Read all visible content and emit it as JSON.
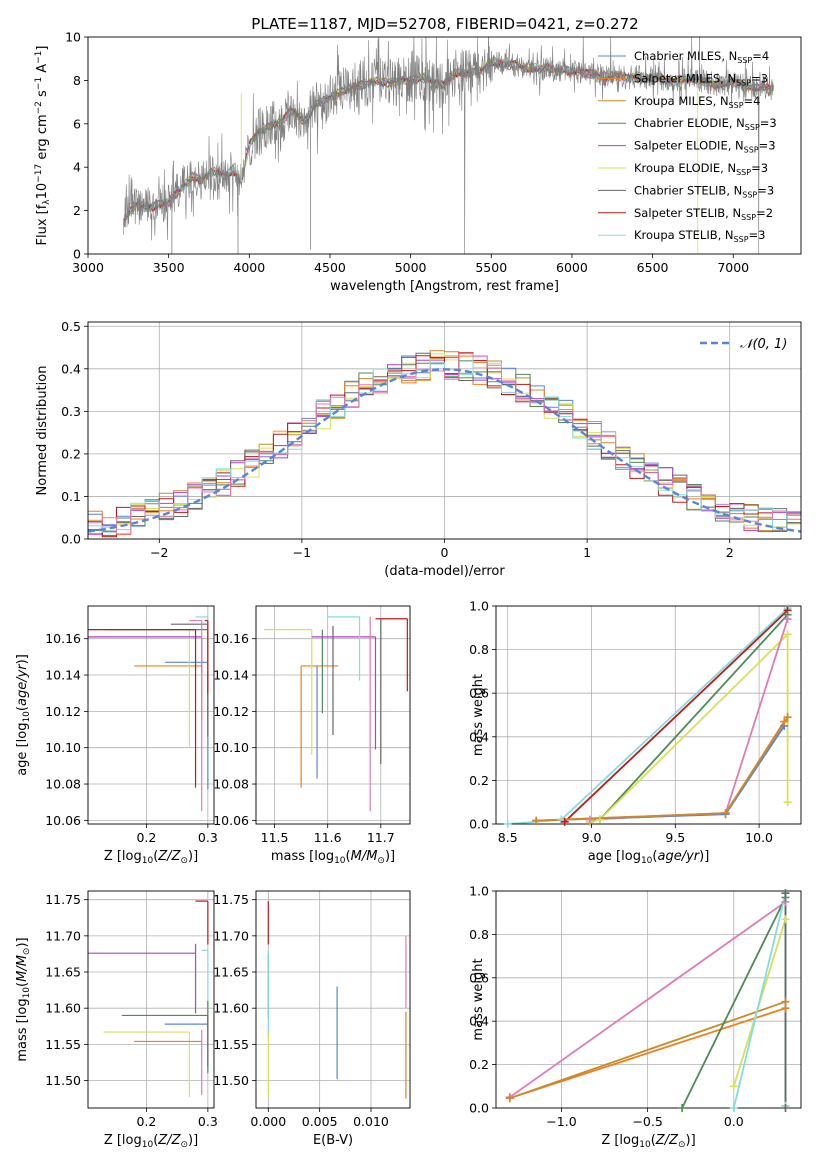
{
  "figure": {
    "title": "PLATE=1187, MJD=52708, FIBERID=0421, z=0.272"
  },
  "colors": {
    "Chabrier MILES": "#5a85d6",
    "Salpeter MILES": "#f07f1e",
    "Kroupa MILES": "#c88a2a",
    "Chabrier ELODIE": "#4e8a55",
    "Salpeter ELODIE": "#b23fcc",
    "Kroupa ELODIE": "#d7e05a",
    "Chabrier STELIB": "#666666",
    "Salpeter STELIB": "#c01818",
    "Kroupa STELIB": "#82dde0",
    "pink": "#e07ab8"
  },
  "chart_data": [
    {
      "id": "spectrum",
      "type": "line",
      "title": "PLATE=1187, MJD=52708, FIBERID=0421, z=0.272",
      "xlabel": "wavelength [Angstrom, rest frame]",
      "ylabel": "Flux [f_λ 10^-17 erg cm^-2 s^-1 A^-1]",
      "xlim": [
        3000,
        7420
      ],
      "ylim": [
        0,
        10
      ],
      "xticks": [
        "3000",
        "3500",
        "4000",
        "4500",
        "5000",
        "5500",
        "6000",
        "6500",
        "7000"
      ],
      "yticks": [
        "0",
        "2",
        "4",
        "6",
        "8",
        "10"
      ],
      "grid": false,
      "legend_position": "upper right",
      "legend": [
        {
          "label": "Chabrier MILES, N",
          "sub": "SSP",
          "tail": "=4",
          "color": "#5a85d6"
        },
        {
          "label": "Salpeter MILES, N",
          "sub": "SSP",
          "tail": "=3",
          "color": "#f07f1e"
        },
        {
          "label": "Kroupa MILES, N",
          "sub": "SSP",
          "tail": "=4",
          "color": "#c88a2a"
        },
        {
          "label": "Chabrier ELODIE, N",
          "sub": "SSP",
          "tail": "=3",
          "color": "#4e8a55"
        },
        {
          "label": "Salpeter ELODIE, N",
          "sub": "SSP",
          "tail": "=3",
          "color": "#b23fcc"
        },
        {
          "label": "Kroupa ELODIE, N",
          "sub": "SSP",
          "tail": "=3",
          "color": "#d7e05a"
        },
        {
          "label": "Chabrier STELIB, N",
          "sub": "SSP",
          "tail": "=3",
          "color": "#666666"
        },
        {
          "label": "Salpeter STELIB, N",
          "sub": "SSP",
          "tail": "=2",
          "color": "#c01818"
        },
        {
          "label": "Kroupa STELIB, N",
          "sub": "SSP",
          "tail": "=3",
          "color": "#82dde0"
        }
      ],
      "continuum": {
        "wavelength": [
          3220,
          3250,
          3300,
          3350,
          3400,
          3450,
          3500,
          3550,
          3600,
          3650,
          3700,
          3750,
          3800,
          3850,
          3900,
          3950,
          4000,
          4050,
          4100,
          4150,
          4200,
          4250,
          4300,
          4350,
          4400,
          4450,
          4500,
          4550,
          4600,
          4650,
          4700,
          4750,
          4800,
          4850,
          4900,
          4950,
          5000,
          5050,
          5100,
          5150,
          5200,
          5250,
          5300,
          5350,
          5400,
          5450,
          5500,
          5550,
          5600,
          5650,
          5700,
          5750,
          5800,
          5850,
          5900,
          5950,
          6000,
          6050,
          6100,
          6150,
          6200,
          6250,
          6300,
          6350,
          6400,
          6450,
          6500,
          6550,
          6600,
          6650,
          6700,
          6750,
          6800,
          6850,
          6900,
          6950,
          7000,
          7050,
          7100,
          7150,
          7200,
          7250
        ],
        "flux": [
          1.5,
          1.9,
          2.2,
          2.2,
          2.2,
          2.3,
          2.4,
          2.8,
          3.2,
          3.6,
          3.4,
          3.7,
          3.8,
          3.6,
          3.9,
          3.3,
          5.0,
          5.6,
          5.8,
          6.0,
          6.0,
          6.6,
          6.4,
          6.1,
          6.8,
          7.0,
          7.2,
          7.4,
          7.6,
          7.7,
          7.8,
          7.9,
          8.0,
          7.9,
          7.9,
          8.0,
          8.0,
          8.1,
          8.1,
          7.8,
          7.8,
          8.2,
          8.4,
          8.3,
          8.4,
          8.5,
          8.9,
          8.8,
          8.7,
          8.7,
          8.6,
          8.6,
          8.5,
          8.6,
          8.4,
          8.5,
          8.4,
          8.4,
          8.3,
          8.3,
          8.2,
          8.2,
          8.2,
          8.1,
          8.2,
          8.1,
          8.1,
          8.1,
          8.0,
          8.0,
          8.1,
          8.0,
          8.0,
          7.9,
          7.8,
          7.8,
          7.9,
          7.8,
          7.7,
          7.7,
          7.7,
          7.5
        ]
      }
    },
    {
      "id": "residuals",
      "type": "histogram",
      "xlabel": "(data-model)/error",
      "ylabel": "Normed distribution",
      "xlim": [
        -2.5,
        2.5
      ],
      "ylim": [
        0,
        0.51
      ],
      "xticks": [
        "−2",
        "−1",
        "0",
        "1",
        "2"
      ],
      "yticks": [
        "0.0",
        "0.1",
        "0.2",
        "0.3",
        "0.4",
        "0.5"
      ],
      "grid": true,
      "legend_position": "upper right",
      "legend": [
        {
          "label": "𝒩(0, 1)",
          "color": "#5a85d6",
          "style": "dashed"
        }
      ],
      "bin_width": 0.1
    },
    {
      "id": "age-vs-Z",
      "type": "errorbar",
      "xlabel": "Z [log10(Z/Z⊙)]",
      "ylabel": "age [log10(age/yr)]",
      "xlim": [
        0.105,
        0.31
      ],
      "ylim": [
        10.058,
        10.178
      ],
      "xticks": [
        "0.2",
        "0.3"
      ],
      "yticks": [
        "10.06",
        "10.08",
        "10.10",
        "10.12",
        "10.14",
        "10.16"
      ],
      "grid": true,
      "points": [
        {
          "series": "Chabrier MILES",
          "x": 0.3,
          "y": 10.147,
          "xerr_lo": 0.07,
          "yerr_lo": 0.07
        },
        {
          "series": "Salpeter MILES",
          "x": 0.29,
          "y": 10.145,
          "xerr_lo": 0.11,
          "yerr_lo": 0.03
        },
        {
          "series": "Kroupa ELODIE",
          "x": 0.27,
          "y": 10.165,
          "xerr_lo": 0.14,
          "yerr_lo": 0.065
        },
        {
          "series": "Salpeter ELODIE",
          "x": 0.29,
          "y": 10.161,
          "xerr_lo": 0.19,
          "yerr_lo": 0.02
        },
        {
          "series": "Chabrier ELODIE",
          "x": 0.3,
          "y": 10.165,
          "xerr_lo": 0.16,
          "yerr_lo": 0.05
        },
        {
          "series": "Salpeter STELIB",
          "x": 0.28,
          "y": 10.165,
          "xerr_lo": 0.18,
          "yerr_lo": 0.087
        },
        {
          "series": "Chabrier STELIB",
          "x": 0.3,
          "y": 10.168,
          "xerr_lo": 0.06,
          "yerr_lo": 0.062
        },
        {
          "series": "Kroupa STELIB",
          "x": 0.3,
          "y": 10.172,
          "xerr_lo": 0.02,
          "yerr_lo": 0.03
        },
        {
          "series": "pink",
          "x": 0.29,
          "y": 10.17,
          "xerr_lo": 0.02,
          "yerr_lo": 0.105
        },
        {
          "series": "Salpeter STELIB",
          "x": 0.3,
          "y": 10.17,
          "xerr_lo": 0.005,
          "yerr_lo": 0.04
        }
      ]
    },
    {
      "id": "age-vs-mass",
      "type": "errorbar",
      "xlabel": "mass [log10(M/M⊙)]",
      "ylabel": "",
      "xlim": [
        11.465,
        11.755
      ],
      "ylim": [
        10.058,
        10.178
      ],
      "xticks": [
        "11.5",
        "11.6",
        "11.7"
      ],
      "yticks": [
        "10.06",
        "10.08",
        "10.10",
        "10.12",
        "10.14",
        "10.16"
      ],
      "grid": true,
      "points": [
        {
          "series": "Salpeter MILES",
          "x": 11.55,
          "y": 10.145,
          "xerr_hi": 0.07,
          "yerr_lo": 0.067
        },
        {
          "series": "Chabrier MILES",
          "x": 11.58,
          "y": 10.145,
          "yerr_lo": 0.062
        },
        {
          "series": "Kroupa ELODIE",
          "x": 11.57,
          "y": 10.165,
          "xerr_lo": 0.09,
          "yerr_lo": 0.069
        },
        {
          "series": "Chabrier ELODIE",
          "x": 11.59,
          "y": 10.165,
          "yerr_lo": 0.046
        },
        {
          "series": "Salpeter ELODIE",
          "x": 11.69,
          "y": 10.161,
          "xerr_lo": 0.12,
          "yerr_lo": 0.062
        },
        {
          "series": "Chabrier STELIB",
          "x": 11.61,
          "y": 10.167,
          "yerr_lo": 0.06
        },
        {
          "series": "Kroupa STELIB",
          "x": 11.66,
          "y": 10.172,
          "xerr_lo": 0.06,
          "yerr_lo": 0.035
        },
        {
          "series": "pink",
          "x": 11.68,
          "y": 10.172,
          "yerr_lo": 0.107
        },
        {
          "series": "Salpeter STELIB",
          "x": 11.75,
          "y": 10.171,
          "xerr_lo": 0.06,
          "yerr_lo": 0.04
        },
        {
          "series": "Chabrier STELIB",
          "x": 11.7,
          "y": 10.171,
          "yerr_lo": 0.08
        }
      ]
    },
    {
      "id": "mass-weight-vs-age",
      "type": "line",
      "xlabel": "age [log10(age/yr)]",
      "ylabel": "mass weight",
      "xlim": [
        8.43,
        10.25
      ],
      "ylim": [
        0,
        1.0
      ],
      "xticks": [
        "8.5",
        "9.0",
        "9.5",
        "10.0"
      ],
      "yticks": [
        "0.0",
        "0.2",
        "0.4",
        "0.6",
        "0.8",
        "1.0"
      ],
      "grid": true,
      "series": [
        {
          "name": "Kroupa STELIB",
          "x": [
            8.5,
            8.82,
            10.17
          ],
          "y": [
            0.0,
            0.02,
            0.99
          ]
        },
        {
          "name": "Salpeter STELIB",
          "x": [
            8.84,
            10.17
          ],
          "y": [
            0.01,
            0.98
          ]
        },
        {
          "name": "Chabrier ELODIE",
          "x": [
            8.99,
            9.05,
            10.17
          ],
          "y": [
            0.01,
            0.02,
            0.96
          ]
        },
        {
          "name": "Kroupa ELODIE",
          "x": [
            8.99,
            9.05,
            10.17,
            10.17
          ],
          "y": [
            0.01,
            0.02,
            0.87,
            0.1
          ]
        },
        {
          "name": "pink",
          "x": [
            8.99,
            9.8,
            10.17
          ],
          "y": [
            0.02,
            0.05,
            0.94
          ]
        },
        {
          "name": "Chabrier MILES",
          "x": [
            8.67,
            9.8,
            10.15
          ],
          "y": [
            0.015,
            0.045,
            0.45
          ]
        },
        {
          "name": "Salpeter MILES",
          "x": [
            8.67,
            9.8,
            10.15
          ],
          "y": [
            0.015,
            0.05,
            0.47
          ]
        },
        {
          "name": "Kroupa MILES",
          "x": [
            8.67,
            9.8,
            10.17
          ],
          "y": [
            0.015,
            0.05,
            0.49
          ]
        }
      ]
    },
    {
      "id": "mass-vs-Z",
      "type": "errorbar",
      "xlabel": "Z [log10(Z/Z⊙)]",
      "ylabel": "mass [log10(M/M⊙)]",
      "xlim": [
        0.105,
        0.31
      ],
      "ylim": [
        11.462,
        11.762
      ],
      "xticks": [
        "0.2",
        "0.3"
      ],
      "yticks": [
        "11.50",
        "11.55",
        "11.60",
        "11.65",
        "11.70",
        "11.75"
      ],
      "grid": true,
      "points": [
        {
          "series": "Salpeter STELIB",
          "x": 0.3,
          "y": 11.748,
          "xerr_lo": 0.02,
          "yerr_lo": 0.06
        },
        {
          "series": "Salpeter ELODIE",
          "x": 0.28,
          "y": 11.676,
          "xerr_lo": 0.18,
          "yerr_hi": 0.013,
          "yerr_lo": 0.083
        },
        {
          "series": "Kroupa STELIB",
          "x": 0.3,
          "y": 11.68,
          "xerr_lo": 0.01,
          "yerr_lo": 0.12
        },
        {
          "series": "Chabrier ELODIE",
          "x": 0.3,
          "y": 11.59,
          "xerr_lo": 0.14,
          "yerr_hi": 0.02,
          "yerr_lo": 0.08
        },
        {
          "series": "Chabrier MILES",
          "x": 0.3,
          "y": 11.578,
          "xerr_lo": 0.07
        },
        {
          "series": "Kroupa ELODIE",
          "x": 0.27,
          "y": 11.567,
          "xerr_lo": 0.14,
          "yerr_lo": 0.09
        },
        {
          "series": "Salpeter MILES",
          "x": 0.29,
          "y": 11.554,
          "xerr_lo": 0.11
        },
        {
          "series": "pink",
          "x": 0.29,
          "y": 11.57,
          "yerr_lo": 0.09
        },
        {
          "series": "Chabrier STELIB",
          "x": 0.3,
          "y": 11.59,
          "yerr_lo": 0.07
        }
      ]
    },
    {
      "id": "mass-vs-EBV",
      "type": "errorbar",
      "xlabel": "E(B-V)",
      "ylabel": "",
      "xlim": [
        -0.0012,
        0.0138
      ],
      "ylim": [
        11.462,
        11.762
      ],
      "xticks": [
        "0.000",
        "0.005",
        "0.010"
      ],
      "yticks": [
        "11.50",
        "11.55",
        "11.60",
        "11.65",
        "11.70",
        "11.75"
      ],
      "grid": true,
      "points": [
        {
          "series": "Salpeter STELIB",
          "x": 0.0,
          "y": 11.748,
          "yerr_lo": 0.06
        },
        {
          "series": "Salpeter ELODIE",
          "x": 0.0,
          "y": 11.676,
          "yerr_lo": 0.09
        },
        {
          "series": "Kroupa STELIB",
          "x": 0.0,
          "y": 11.68,
          "yerr_lo": 0.12
        },
        {
          "series": "Kroupa ELODIE",
          "x": 0.0,
          "y": 11.567,
          "yerr_lo": 0.09
        },
        {
          "series": "Chabrier MILES",
          "x": 0.0067,
          "y": 11.63,
          "yerr_lo": 0.128
        },
        {
          "series": "pink",
          "x": 0.0134,
          "y": 11.7,
          "yerr_lo": 0.1
        },
        {
          "series": "Salpeter MILES",
          "x": 0.0134,
          "y": 11.595,
          "yerr_lo": 0.12
        }
      ]
    },
    {
      "id": "mass-weight-vs-Z",
      "type": "line",
      "xlabel": "Z [log10(Z/Z⊙)]",
      "ylabel": "mass weight",
      "xlim": [
        -1.38,
        0.39
      ],
      "ylim": [
        0,
        1.0
      ],
      "xticks": [
        "−1.0",
        "−0.5",
        "0.0"
      ],
      "yticks": [
        "0.0",
        "0.2",
        "0.4",
        "0.6",
        "0.8",
        "1.0"
      ],
      "grid": true,
      "series": [
        {
          "name": "pink",
          "x": [
            -1.3,
            0.3
          ],
          "y": [
            0.05,
            0.95
          ]
        },
        {
          "name": "Salpeter MILES",
          "x": [
            -1.3,
            0.3
          ],
          "y": [
            0.045,
            0.46
          ]
        },
        {
          "name": "Kroupa MILES",
          "x": [
            -1.3,
            0.3
          ],
          "y": [
            0.045,
            0.49
          ]
        },
        {
          "name": "Chabrier ELODIE",
          "x": [
            -0.3,
            0.3,
            0.3
          ],
          "y": [
            0.0,
            0.97,
            0.01
          ]
        },
        {
          "name": "Kroupa ELODIE",
          "x": [
            0.0,
            0.3,
            0.3
          ],
          "y": [
            0.1,
            0.87,
            0.01
          ]
        },
        {
          "name": "Kroupa STELIB",
          "x": [
            0.0,
            0.3,
            0.3
          ],
          "y": [
            0.0,
            0.99,
            0.01
          ]
        },
        {
          "name": "Chabrier STELIB",
          "x": [
            0.3,
            0.3
          ],
          "y": [
            0.0,
            0.99
          ]
        }
      ]
    }
  ]
}
